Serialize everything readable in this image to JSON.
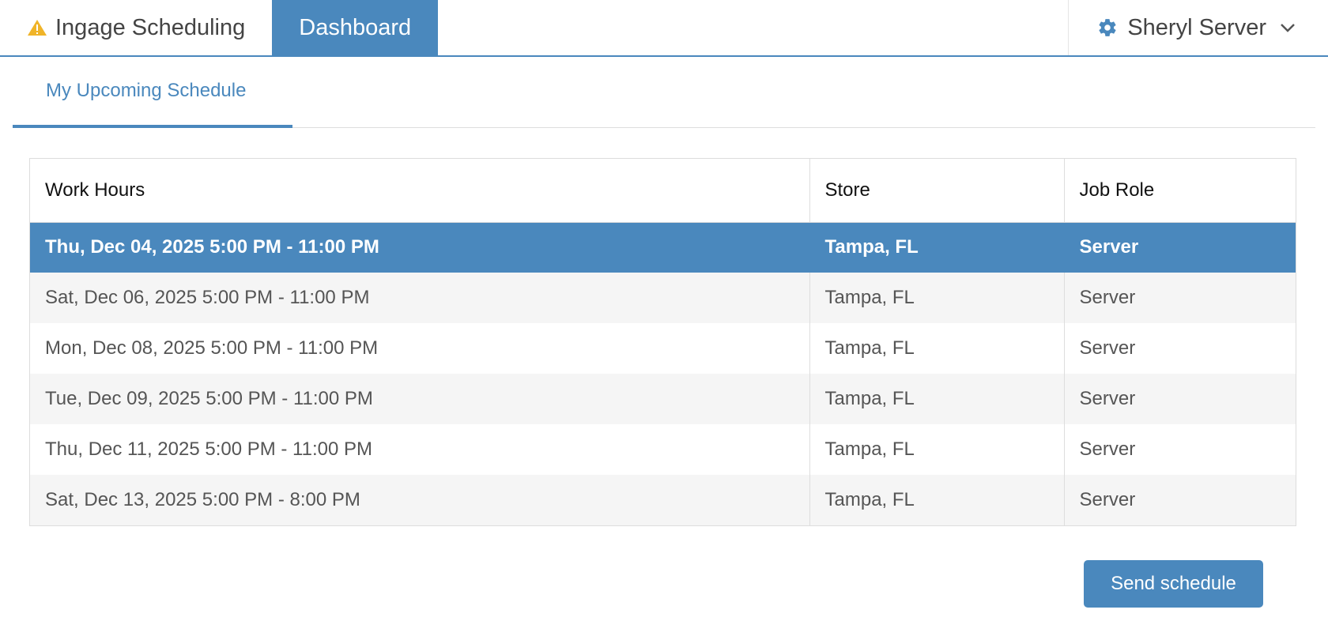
{
  "navbar": {
    "brand_label": "Ingage Scheduling",
    "brand_icon": "warning-triangle-icon",
    "active_tab_label": "Dashboard",
    "user_name": "Sheryl Server",
    "user_icon": "gear-icon",
    "menu_icon": "chevron-down-icon"
  },
  "subtabs": {
    "active_label": "My Upcoming Schedule"
  },
  "schedule_table": {
    "headers": {
      "hours": "Work Hours",
      "store": "Store",
      "role": "Job Role"
    },
    "rows": [
      {
        "hours": "Thu, Dec 04, 2025 5:00 PM - 11:00 PM",
        "store": "Tampa, FL",
        "role": "Server",
        "selected": true
      },
      {
        "hours": "Sat, Dec 06, 2025 5:00 PM - 11:00 PM",
        "store": "Tampa, FL",
        "role": "Server"
      },
      {
        "hours": "Mon, Dec 08, 2025 5:00 PM - 11:00 PM",
        "store": "Tampa, FL",
        "role": "Server"
      },
      {
        "hours": "Tue, Dec 09, 2025 5:00 PM - 11:00 PM",
        "store": "Tampa, FL",
        "role": "Server"
      },
      {
        "hours": "Thu, Dec 11, 2025 5:00 PM - 11:00 PM",
        "store": "Tampa, FL",
        "role": "Server"
      },
      {
        "hours": "Sat, Dec 13, 2025 5:00 PM - 8:00 PM",
        "store": "Tampa, FL",
        "role": "Server"
      }
    ]
  },
  "actions": {
    "send_label": "Send schedule"
  },
  "colors": {
    "accent": "#4a88bd",
    "warning": "#f0b429",
    "row_alt": "#f5f5f5"
  }
}
